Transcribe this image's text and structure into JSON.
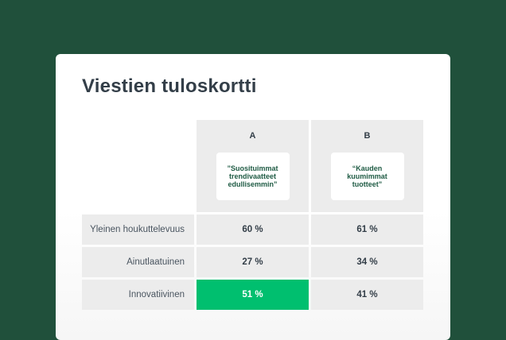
{
  "title": "Viestien tuloskortti",
  "columns": [
    {
      "letter": "A",
      "quote": "”Suosituimmat trendivaatteet edullisemmin”"
    },
    {
      "letter": "B",
      "quote": "“Kauden kuumimmat tuotteet”"
    }
  ],
  "rows": [
    {
      "label": "Yleinen houkuttelevuus",
      "a": "60 %",
      "b": "61 %"
    },
    {
      "label": "Ainutlaatuinen",
      "a": "27 %",
      "b": "34 %"
    },
    {
      "label": "Innovatiivinen",
      "a": "51 %",
      "b": "41 %"
    }
  ],
  "colors": {
    "background": "#20503b",
    "highlight": "#00bf6f",
    "quote_text": "#1f5b44"
  }
}
